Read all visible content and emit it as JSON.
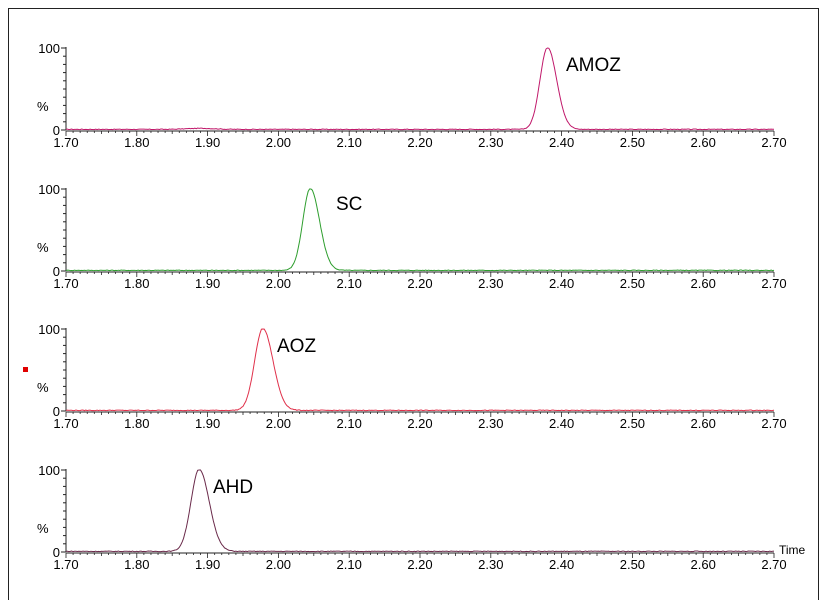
{
  "chart_data": [
    {
      "type": "line",
      "label": "AMOZ",
      "color": "#c0186a",
      "xlim": [
        1.7,
        2.7
      ],
      "ylim": [
        0,
        100
      ],
      "yticks": [
        0,
        100
      ],
      "ylabel": "%",
      "xlabel": "",
      "xticks": [
        "1.70",
        "1.80",
        "1.90",
        "2.00",
        "2.10",
        "2.20",
        "2.30",
        "2.40",
        "2.50",
        "2.60",
        "2.70"
      ],
      "peak": {
        "center": 2.38,
        "height": 100,
        "sigma": 0.0105
      },
      "extra_bumps": [
        {
          "center": 1.89,
          "height": 1.2,
          "sigma": 0.02
        }
      ]
    },
    {
      "type": "line",
      "label": "SC",
      "color": "#2e9e2e",
      "xlim": [
        1.7,
        2.7
      ],
      "ylim": [
        0,
        100
      ],
      "yticks": [
        0,
        100
      ],
      "ylabel": "%",
      "xlabel": "",
      "xticks": [
        "1.70",
        "1.80",
        "1.90",
        "2.00",
        "2.10",
        "2.20",
        "2.30",
        "2.40",
        "2.50",
        "2.60",
        "2.70"
      ],
      "peak": {
        "center": 2.045,
        "height": 100,
        "sigma": 0.0105
      },
      "extra_bumps": []
    },
    {
      "type": "line",
      "label": "AOZ",
      "color": "#e0304a",
      "xlim": [
        1.7,
        2.7
      ],
      "ylim": [
        0,
        100
      ],
      "yticks": [
        0,
        100
      ],
      "ylabel": "%",
      "xlabel": "",
      "xticks": [
        "1.70",
        "1.80",
        "1.90",
        "2.00",
        "2.10",
        "2.20",
        "2.30",
        "2.40",
        "2.50",
        "2.60",
        "2.70"
      ],
      "peak": {
        "center": 1.978,
        "height": 100,
        "sigma": 0.0115
      },
      "extra_bumps": []
    },
    {
      "type": "line",
      "label": "AHD",
      "color": "#6a2a4a",
      "xlim": [
        1.7,
        2.7
      ],
      "ylim": [
        0,
        100
      ],
      "yticks": [
        0,
        100
      ],
      "ylabel": "%",
      "xlabel": "Time",
      "xticks": [
        "1.70",
        "1.80",
        "1.90",
        "2.00",
        "2.10",
        "2.20",
        "2.30",
        "2.40",
        "2.50",
        "2.60",
        "2.70"
      ],
      "peak": {
        "center": 1.888,
        "height": 100,
        "sigma": 0.0115
      },
      "extra_bumps": []
    }
  ]
}
